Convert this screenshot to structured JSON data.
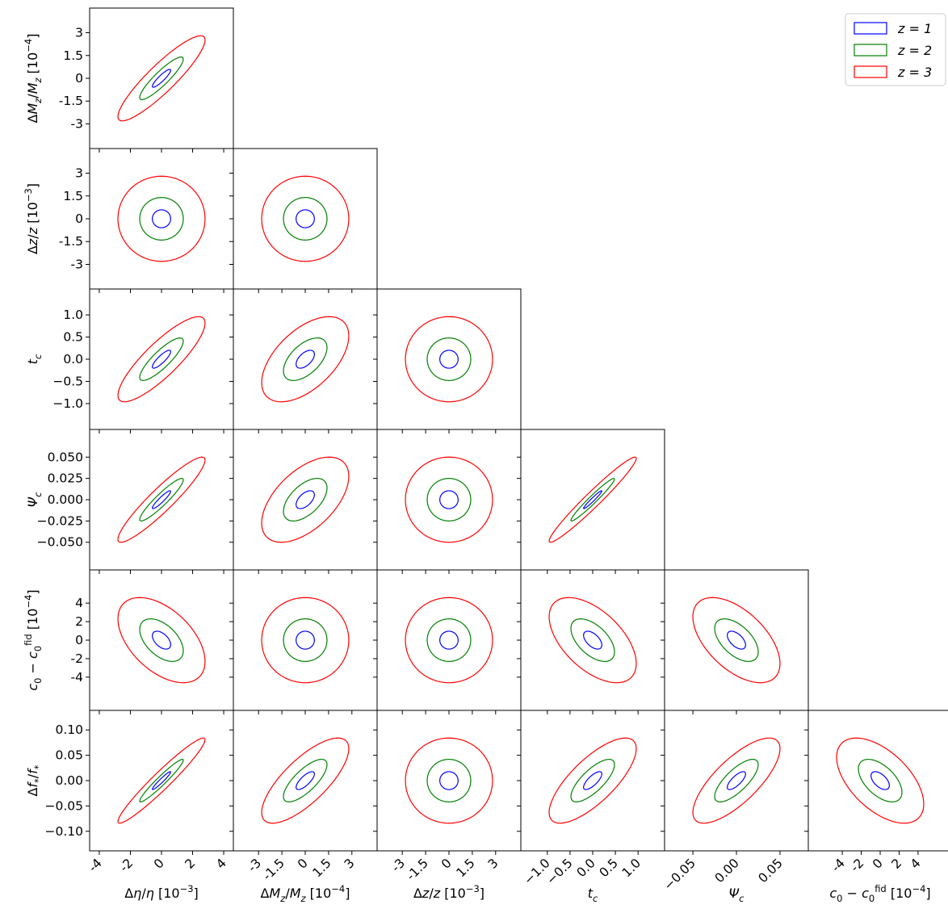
{
  "chart_data": {
    "type": "corner-contour",
    "parameters": [
      {
        "key": "eta",
        "sigma": 1.4,
        "xlabel": "Δη/η [10⁻³]",
        "ylabel": "",
        "xticks": [
          {
            "v": -4,
            "t": "-4"
          },
          {
            "v": -2,
            "t": "-2"
          },
          {
            "v": 0,
            "t": "0"
          },
          {
            "v": 2,
            "t": "2"
          },
          {
            "v": 4,
            "t": "4"
          }
        ],
        "yticks": [],
        "xtick_rotation": -45
      },
      {
        "key": "Mz",
        "sigma": 1.4,
        "xlabel": "ΔM_z/M_z [10⁻⁴]",
        "ylabel": "ΔM_z/M_z [10⁻⁴]",
        "xticks": [
          {
            "v": -3,
            "t": "-3"
          },
          {
            "v": -1.5,
            "t": "-1.5"
          },
          {
            "v": 0,
            "t": "0"
          },
          {
            "v": 1.5,
            "t": "1.5"
          },
          {
            "v": 3,
            "t": "3"
          }
        ],
        "yticks": [
          {
            "v": -3,
            "t": "-3"
          },
          {
            "v": -1.5,
            "t": "-1.5"
          },
          {
            "v": 0,
            "t": "0"
          },
          {
            "v": 1.5,
            "t": "1.5"
          },
          {
            "v": 3,
            "t": "3"
          }
        ],
        "xtick_rotation": -45
      },
      {
        "key": "z",
        "sigma": 1.4,
        "xlabel": "Δz/z [10⁻³]",
        "ylabel": "Δz/z [10⁻³]",
        "xticks": [
          {
            "v": -3,
            "t": "-3"
          },
          {
            "v": -1.5,
            "t": "-1.5"
          },
          {
            "v": 0,
            "t": "0"
          },
          {
            "v": 1.5,
            "t": "1.5"
          },
          {
            "v": 3,
            "t": "3"
          }
        ],
        "yticks": [
          {
            "v": -3,
            "t": "-3"
          },
          {
            "v": -1.5,
            "t": "-1.5"
          },
          {
            "v": 0,
            "t": "0"
          },
          {
            "v": 1.5,
            "t": "1.5"
          },
          {
            "v": 3,
            "t": "3"
          }
        ],
        "xtick_rotation": -45
      },
      {
        "key": "tc",
        "sigma": 0.48,
        "xlabel": "t_c",
        "ylabel": "t_c",
        "xticks": [
          {
            "v": -1,
            "t": "−1.0"
          },
          {
            "v": -0.5,
            "t": "−0.5"
          },
          {
            "v": 0,
            "t": "0.0"
          },
          {
            "v": 0.5,
            "t": "0.5"
          },
          {
            "v": 1,
            "t": "1.0"
          }
        ],
        "yticks": [
          {
            "v": -1,
            "t": "−1.0"
          },
          {
            "v": -0.5,
            "t": "−0.5"
          },
          {
            "v": 0,
            "t": "0.0"
          },
          {
            "v": 0.5,
            "t": "0.5"
          },
          {
            "v": 1,
            "t": "1.0"
          }
        ],
        "xtick_rotation": -45
      },
      {
        "key": "psi",
        "sigma": 0.025,
        "xlabel": "Ψ_c",
        "ylabel": "Ψ_c",
        "xticks": [
          {
            "v": -0.05,
            "t": "−0.05"
          },
          {
            "v": 0,
            "t": "0.00"
          },
          {
            "v": 0.05,
            "t": "0.05"
          }
        ],
        "yticks": [
          {
            "v": -0.05,
            "t": "−0.050"
          },
          {
            "v": -0.025,
            "t": "−0.025"
          },
          {
            "v": 0,
            "t": "0.000"
          },
          {
            "v": 0.025,
            "t": "0.025"
          },
          {
            "v": 0.05,
            "t": "0.050"
          }
        ],
        "xtick_rotation": -45
      },
      {
        "key": "c0",
        "sigma": 2.3,
        "xlabel": "c₀ − c₀^fid [10⁻⁴]",
        "ylabel": "c₀ − c₀^fid [10⁻⁴]",
        "xticks": [
          {
            "v": -4,
            "t": "-4"
          },
          {
            "v": -2,
            "t": "-2"
          },
          {
            "v": 0,
            "t": "0"
          },
          {
            "v": 2,
            "t": "2"
          },
          {
            "v": 4,
            "t": "4"
          }
        ],
        "yticks": [
          {
            "v": -4,
            "t": "-4"
          },
          {
            "v": -2,
            "t": "-2"
          },
          {
            "v": 0,
            "t": "0"
          },
          {
            "v": 2,
            "t": "2"
          },
          {
            "v": 4,
            "t": "4"
          }
        ],
        "xtick_rotation": -45
      },
      {
        "key": "fstar",
        "sigma": 0.042,
        "xlabel": "",
        "ylabel": "Δf_*/f_*",
        "xticks": [],
        "yticks": [
          {
            "v": -0.1,
            "t": "−0.10"
          },
          {
            "v": -0.05,
            "t": "−0.05"
          },
          {
            "v": 0,
            "t": "0.00"
          },
          {
            "v": 0.05,
            "t": "0.05"
          },
          {
            "v": 0.1,
            "t": "0.10"
          }
        ],
        "xtick_rotation": -45
      }
    ],
    "axis_range_sigma": 3.3,
    "pairs": [
      {
        "row": 1,
        "col": 0,
        "rho": 0.9
      },
      {
        "row": 2,
        "col": 0,
        "rho": 0.0
      },
      {
        "row": 2,
        "col": 1,
        "rho": 0.0
      },
      {
        "row": 3,
        "col": 0,
        "rho": 0.85
      },
      {
        "row": 3,
        "col": 1,
        "rho": 0.55
      },
      {
        "row": 3,
        "col": 2,
        "rho": 0.0
      },
      {
        "row": 4,
        "col": 0,
        "rho": 0.93
      },
      {
        "row": 4,
        "col": 1,
        "rho": 0.55
      },
      {
        "row": 4,
        "col": 2,
        "rho": 0.0
      },
      {
        "row": 4,
        "col": 3,
        "rho": 0.97
      },
      {
        "row": 5,
        "col": 0,
        "rho": -0.5
      },
      {
        "row": 5,
        "col": 1,
        "rho": 0.0
      },
      {
        "row": 5,
        "col": 2,
        "rho": 0.0
      },
      {
        "row": 5,
        "col": 3,
        "rho": -0.55
      },
      {
        "row": 5,
        "col": 4,
        "rho": -0.55
      },
      {
        "row": 6,
        "col": 0,
        "rho": 0.96
      },
      {
        "row": 6,
        "col": 1,
        "rho": 0.75
      },
      {
        "row": 6,
        "col": 2,
        "rho": 0.0
      },
      {
        "row": 6,
        "col": 3,
        "rho": 0.75
      },
      {
        "row": 6,
        "col": 4,
        "rho": 0.75
      },
      {
        "row": 6,
        "col": 5,
        "rho": -0.55
      }
    ],
    "series": [
      {
        "name": "z = 1",
        "label": "z = 1",
        "color": "#0000ff",
        "scale": 0.42
      },
      {
        "name": "z = 2",
        "label": "z = 2",
        "color": "#008000",
        "scale": 1.0
      },
      {
        "name": "z = 3",
        "label": "z = 3",
        "color": "#ff0000",
        "scale": 2.0
      }
    ],
    "legend": {
      "placement": "top-right"
    }
  }
}
